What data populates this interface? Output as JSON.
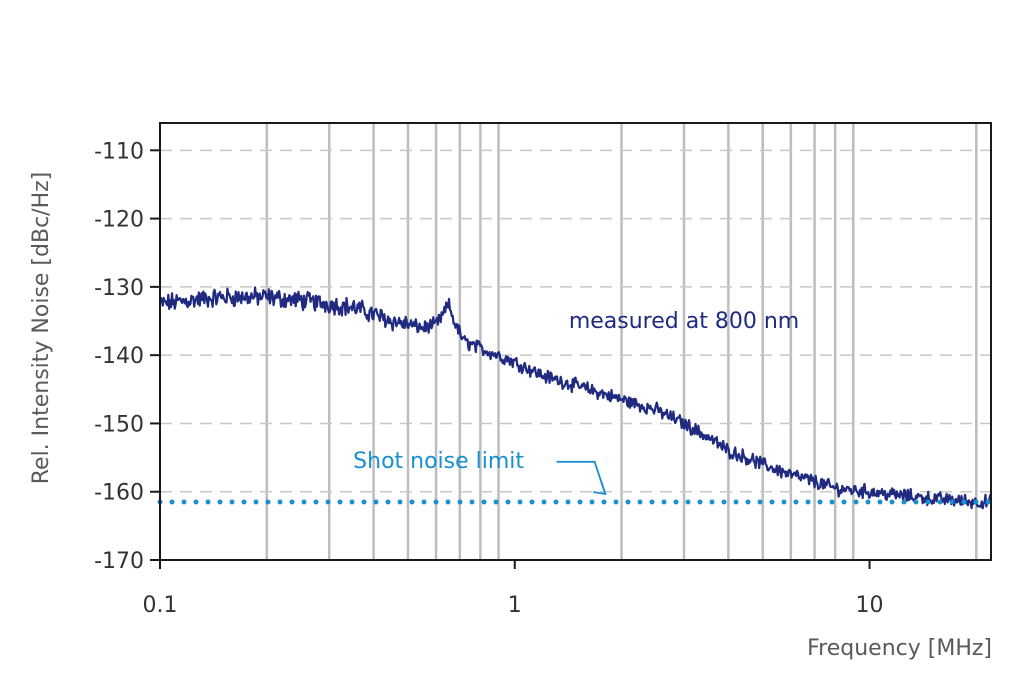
{
  "chart_data": {
    "type": "line",
    "xlabel": "Frequency [MHz]",
    "ylabel": "Rel. Intensity Noise [dBc/Hz]",
    "x_scale": "log",
    "xlim": [
      0.1,
      22
    ],
    "ylim": [
      -170,
      -106
    ],
    "x_ticks": [
      {
        "value": 0.1,
        "label": "0.1"
      },
      {
        "value": 1,
        "label": "1"
      },
      {
        "value": 10,
        "label": "10"
      }
    ],
    "y_ticks": [
      -110,
      -120,
      -130,
      -140,
      -150,
      -160,
      -170
    ],
    "y_tick_labels": [
      "-110",
      "-120",
      "-130",
      "-140",
      "-150",
      "-160",
      "-170"
    ],
    "minor_gridlines_x": [
      0.2,
      0.3,
      0.4,
      0.5,
      0.6,
      0.7,
      0.8,
      0.9,
      2,
      3,
      4,
      5,
      6,
      7,
      8,
      9,
      20
    ],
    "grid": {
      "x": "solid-minor",
      "y": "dashed"
    },
    "series": [
      {
        "color": "#1f2a80",
        "style": "solid",
        "x": [
          0.1,
          0.12,
          0.15,
          0.2,
          0.25,
          0.3,
          0.35,
          0.4,
          0.45,
          0.5,
          0.55,
          0.6,
          0.63,
          0.65,
          0.68,
          0.72,
          0.8,
          1.0,
          1.2,
          1.5,
          2.0,
          2.5,
          3.0,
          3.5,
          4.0,
          4.5,
          5.0,
          6.0,
          7.0,
          8.0,
          10.0,
          12.0,
          15.0,
          20.0,
          22.0
        ],
        "y": [
          -132.5,
          -132,
          -131.5,
          -131.5,
          -132,
          -132.5,
          -133,
          -134,
          -135,
          -135.5,
          -136,
          -135.5,
          -134,
          -132.5,
          -135.5,
          -138,
          -139,
          -141,
          -143,
          -144.5,
          -146.5,
          -148,
          -150,
          -152,
          -154,
          -155,
          -156,
          -157.5,
          -158.5,
          -159.5,
          -160,
          -160.5,
          -161,
          -161.5,
          -161.5
        ]
      },
      {
        "color": "#1a8fcf",
        "style": "dotted",
        "x": [
          0.1,
          22
        ],
        "y": [
          -161.5,
          -161.5
        ]
      }
    ],
    "annotations": [
      {
        "text": "measured at 800 nm",
        "color": "#1f2a80",
        "x": 3.0,
        "y": -136
      },
      {
        "text": "Shot noise limit",
        "color": "#1a8fcf",
        "x": 0.61,
        "y": -156.5,
        "arrow_to": {
          "x": 1.8,
          "y": -161.5
        }
      }
    ]
  }
}
